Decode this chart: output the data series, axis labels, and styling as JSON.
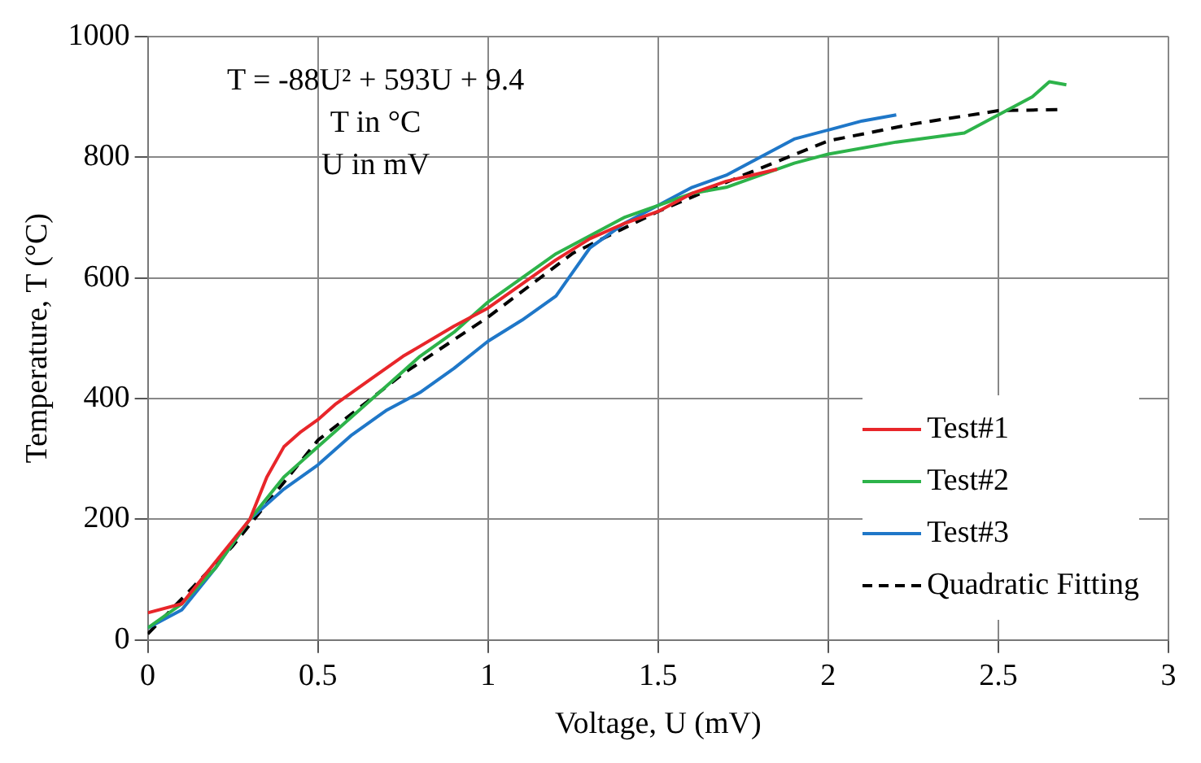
{
  "chart_data": {
    "type": "line",
    "xlabel": "Voltage, U (mV)",
    "ylabel": "Temperature, T (°C)",
    "annotations": [
      "T = -88U² + 593U + 9.4",
      "T in °C",
      "U in mV"
    ],
    "xlim": [
      0,
      3
    ],
    "xticks": [
      0,
      0.5,
      1,
      1.5,
      2,
      2.5,
      3
    ],
    "ylim": [
      0,
      1000
    ],
    "yticks": [
      0,
      200,
      400,
      600,
      800,
      1000
    ],
    "grid": true,
    "legend": "bottom right",
    "marker": "none",
    "series": [
      {
        "name": "Test#1",
        "color": "#e8262a",
        "x": [
          0,
          0.1,
          0.2,
          0.3,
          0.35,
          0.4,
          0.45,
          0.5,
          0.55,
          0.65,
          0.75,
          0.9,
          1.0,
          1.1,
          1.2,
          1.3,
          1.4,
          1.5,
          1.6,
          1.7,
          1.85
        ],
        "values": [
          45,
          60,
          130,
          200,
          270,
          320,
          345,
          365,
          390,
          430,
          470,
          520,
          550,
          590,
          630,
          665,
          690,
          710,
          740,
          760,
          780
        ]
      },
      {
        "name": "Test#2",
        "color": "#2db34a",
        "x": [
          0,
          0.1,
          0.2,
          0.3,
          0.4,
          0.5,
          0.6,
          0.7,
          0.8,
          0.9,
          1.0,
          1.1,
          1.2,
          1.3,
          1.4,
          1.5,
          1.6,
          1.7,
          1.8,
          1.9,
          2.0,
          2.2,
          2.4,
          2.5,
          2.6,
          2.65,
          2.7
        ],
        "values": [
          20,
          60,
          120,
          200,
          270,
          320,
          370,
          420,
          470,
          510,
          560,
          600,
          640,
          670,
          700,
          720,
          740,
          750,
          770,
          790,
          805,
          825,
          840,
          870,
          900,
          925,
          920
        ]
      },
      {
        "name": "Test#3",
        "color": "#1f77c8",
        "x": [
          0,
          0.1,
          0.2,
          0.3,
          0.4,
          0.5,
          0.6,
          0.7,
          0.8,
          0.9,
          1.0,
          1.1,
          1.2,
          1.25,
          1.3,
          1.4,
          1.5,
          1.6,
          1.7,
          1.8,
          1.9,
          2.0,
          2.1,
          2.2
        ],
        "values": [
          20,
          50,
          120,
          200,
          250,
          290,
          340,
          380,
          410,
          450,
          495,
          530,
          570,
          610,
          650,
          690,
          720,
          750,
          770,
          800,
          830,
          845,
          860,
          870
        ]
      },
      {
        "name": "Quadratic Fitting",
        "color": "#000000",
        "line_style": "dashed",
        "x": [
          0,
          0.25,
          0.5,
          0.75,
          1,
          1.25,
          1.5,
          1.75,
          2,
          2.25,
          2.5,
          2.68
        ],
        "values": [
          10,
          156,
          331,
          441,
          535,
          641,
          710,
          770,
          827,
          855,
          877,
          879
        ]
      }
    ]
  }
}
